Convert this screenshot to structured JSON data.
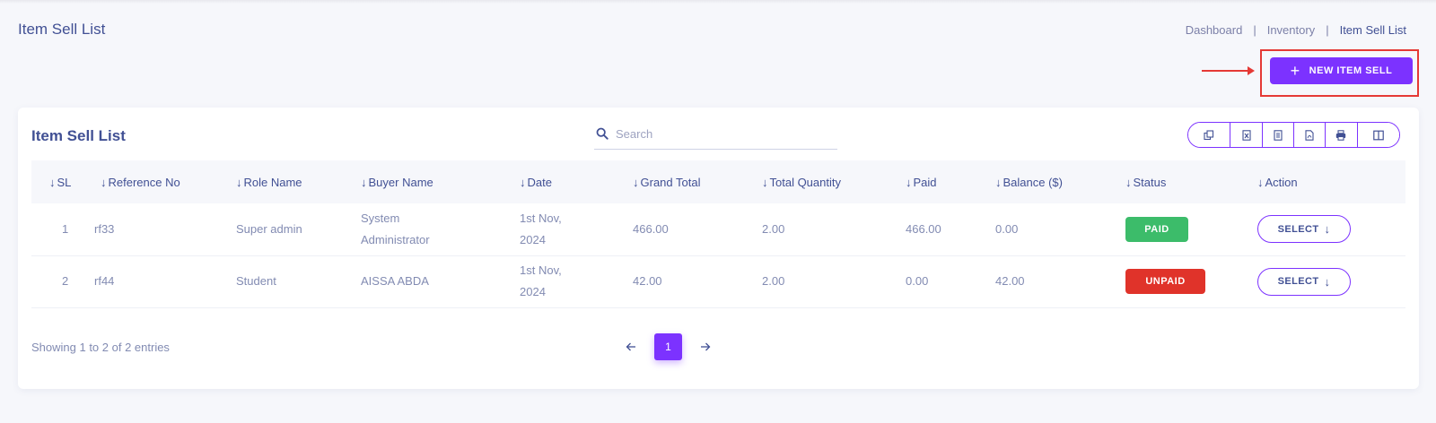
{
  "page": {
    "title": "Item Sell List"
  },
  "breadcrumb": {
    "items": [
      "Dashboard",
      "Inventory",
      "Item Sell List"
    ],
    "separator": "|"
  },
  "actions": {
    "new_item_sell_label": "NEW ITEM SELL"
  },
  "card": {
    "title": "Item Sell List",
    "search": {
      "placeholder": "Search",
      "value": ""
    },
    "export_buttons": [
      "copy-icon",
      "excel-icon",
      "csv-icon",
      "pdf-icon",
      "print-icon",
      "columns-icon"
    ]
  },
  "table": {
    "columns": [
      "SL",
      "Reference No",
      "Role Name",
      "Buyer Name",
      "Date",
      "Grand Total",
      "Total Quantity",
      "Paid",
      "Balance ($)",
      "Status",
      "Action"
    ],
    "rows": [
      {
        "sl": "1",
        "reference": "rf33",
        "role": "Super admin",
        "buyer": "System Administrator",
        "date": "1st Nov, 2024",
        "grand_total": "466.00",
        "total_quantity": "2.00",
        "paid": "466.00",
        "balance": "0.00",
        "status": "PAID",
        "action": "SELECT"
      },
      {
        "sl": "2",
        "reference": "rf44",
        "role": "Student",
        "buyer": "AISSA ABDA",
        "date": "1st Nov, 2024",
        "grand_total": "42.00",
        "total_quantity": "2.00",
        "paid": "0.00",
        "balance": "42.00",
        "status": "UNPAID",
        "action": "SELECT"
      }
    ]
  },
  "pagination": {
    "info": "Showing 1 to 2 of 2 entries",
    "current_page": "1"
  },
  "colors": {
    "accent": "#7c32ff",
    "paid": "#3cbc6a",
    "unpaid": "#e0332a",
    "annotation": "#e53935",
    "text": "#415094"
  }
}
